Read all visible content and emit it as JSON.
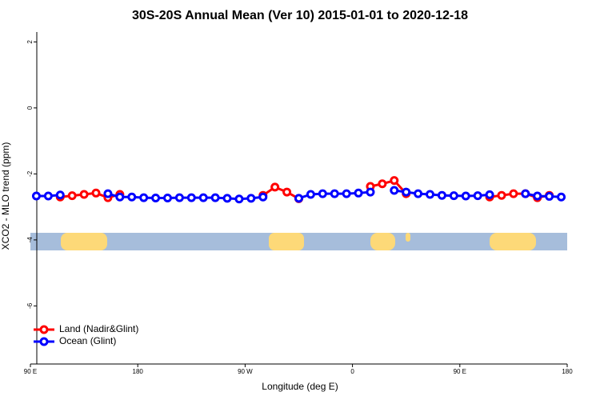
{
  "chart_data": {
    "type": "line",
    "title": "30S-20S Annual Mean (Ver 10)   2015-01-01 to 2020-12-18",
    "x_label": "Longitude (deg E)",
    "y_label": "XCO2 - MLO trend (ppm)",
    "x": [
      95,
      105,
      115,
      125,
      135,
      145,
      155,
      165,
      175,
      185,
      195,
      205,
      215,
      225,
      235,
      245,
      255,
      265,
      275,
      285,
      295,
      305,
      315,
      325,
      335,
      345,
      355,
      365,
      375,
      385,
      395,
      405,
      415,
      425,
      435,
      445,
      455,
      465,
      475,
      485,
      495,
      505,
      515,
      525,
      535
    ],
    "series": [
      {
        "name": "Land (Nadir&Glint)",
        "color": "#ff0000",
        "values": [
          null,
          null,
          -2.7,
          -2.66,
          -2.62,
          -2.58,
          -2.72,
          -2.62,
          null,
          null,
          null,
          null,
          null,
          null,
          null,
          null,
          null,
          null,
          null,
          -2.65,
          -2.4,
          -2.55,
          -2.75,
          null,
          null,
          null,
          null,
          null,
          -2.38,
          -2.3,
          -2.2,
          -2.6,
          null,
          null,
          null,
          null,
          null,
          null,
          -2.7,
          -2.65,
          -2.6,
          -2.6,
          -2.72,
          -2.65,
          null
        ]
      },
      {
        "name": "Ocean (Glint)",
        "color": "#0000ff",
        "values": [
          -2.67,
          -2.67,
          -2.64,
          null,
          null,
          null,
          -2.6,
          -2.7,
          -2.7,
          -2.72,
          -2.73,
          -2.73,
          -2.72,
          -2.72,
          -2.72,
          -2.72,
          -2.74,
          -2.76,
          -2.74,
          -2.7,
          null,
          null,
          -2.74,
          -2.62,
          -2.6,
          -2.6,
          -2.6,
          -2.58,
          -2.55,
          null,
          -2.5,
          -2.55,
          -2.6,
          -2.62,
          -2.65,
          -2.66,
          -2.67,
          -2.66,
          -2.63,
          null,
          null,
          -2.6,
          -2.67,
          -2.68,
          -2.7
        ]
      }
    ],
    "xlim": [
      90,
      540
    ],
    "xticks": [
      {
        "value": 90,
        "label": "90 E"
      },
      180,
      {
        "value": 270,
        "label": "90 W"
      },
      {
        "value": 360,
        "label": "0"
      },
      {
        "value": 450,
        "label": "90 E"
      },
      {
        "value": 540,
        "label": "180"
      }
    ],
    "ylim": [
      -7.76,
      2.3
    ],
    "yticks": [
      2,
      0,
      -2,
      -4,
      -6
    ],
    "legend": "bottom-left"
  }
}
